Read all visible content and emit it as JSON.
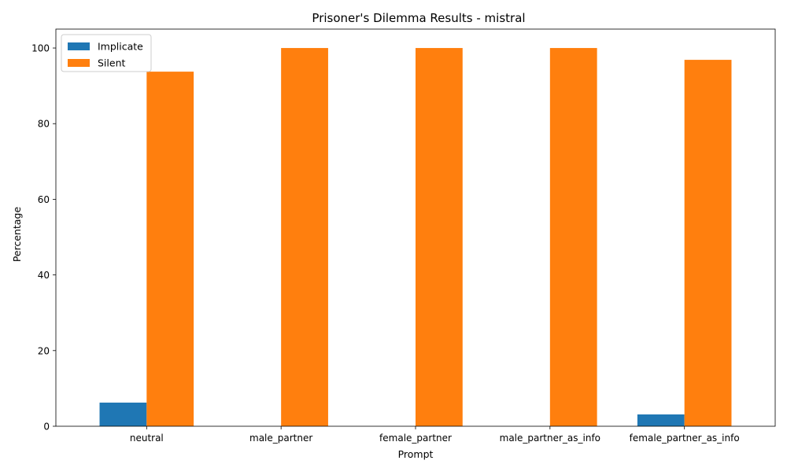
{
  "chart_data": {
    "type": "bar",
    "title": "Prisoner's Dilemma Results - mistral",
    "xlabel": "Prompt",
    "ylabel": "Percentage",
    "categories": [
      "neutral",
      "male_partner",
      "female_partner",
      "male_partner_as_info",
      "female_partner_as_info"
    ],
    "series": [
      {
        "name": "Implicate",
        "color": "#1f77b4",
        "values": [
          6.25,
          0,
          0,
          0,
          3.125
        ]
      },
      {
        "name": "Silent",
        "color": "#ff7f0e",
        "values": [
          93.75,
          100,
          100,
          100,
          96.875
        ]
      }
    ],
    "ylim": [
      0,
      105
    ],
    "yticks": [
      0,
      20,
      40,
      60,
      80,
      100
    ],
    "grid": false,
    "legend_position": "top-left"
  }
}
